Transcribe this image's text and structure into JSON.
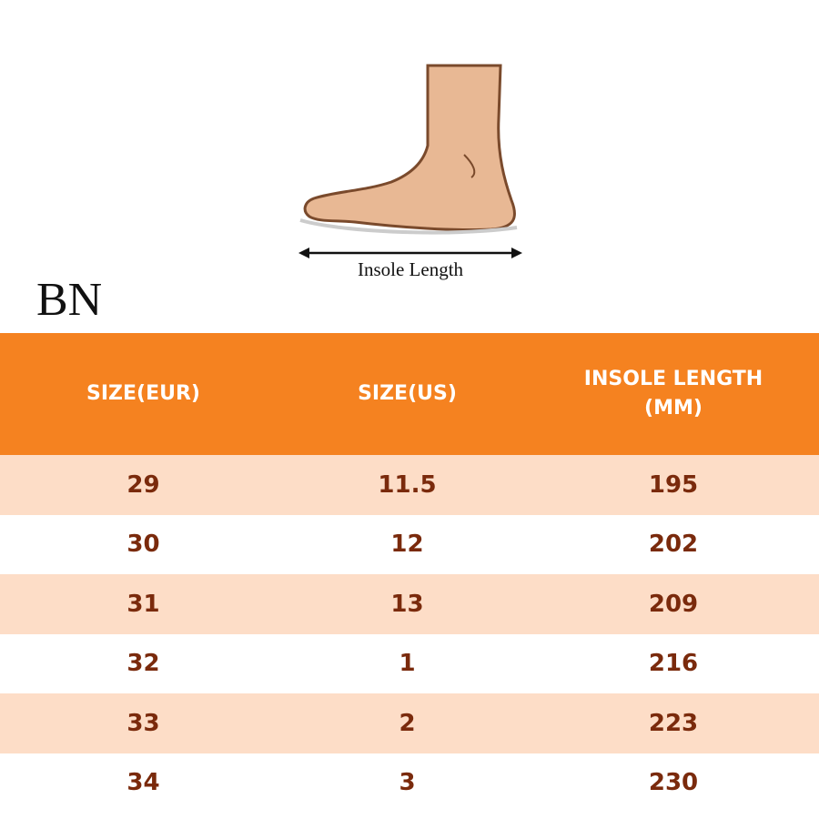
{
  "diagram": {
    "caption": "Insole Length"
  },
  "brand": "BN",
  "table": {
    "headers": [
      "SIZE(EUR)",
      "SIZE(US)",
      "INSOLE LENGTH (MM)"
    ],
    "rows": [
      [
        "29",
        "11.5",
        "195"
      ],
      [
        "30",
        "12",
        "202"
      ],
      [
        "31",
        "13",
        "209"
      ],
      [
        "32",
        "1",
        "216"
      ],
      [
        "33",
        "2",
        "223"
      ],
      [
        "34",
        "3",
        "230"
      ]
    ]
  }
}
